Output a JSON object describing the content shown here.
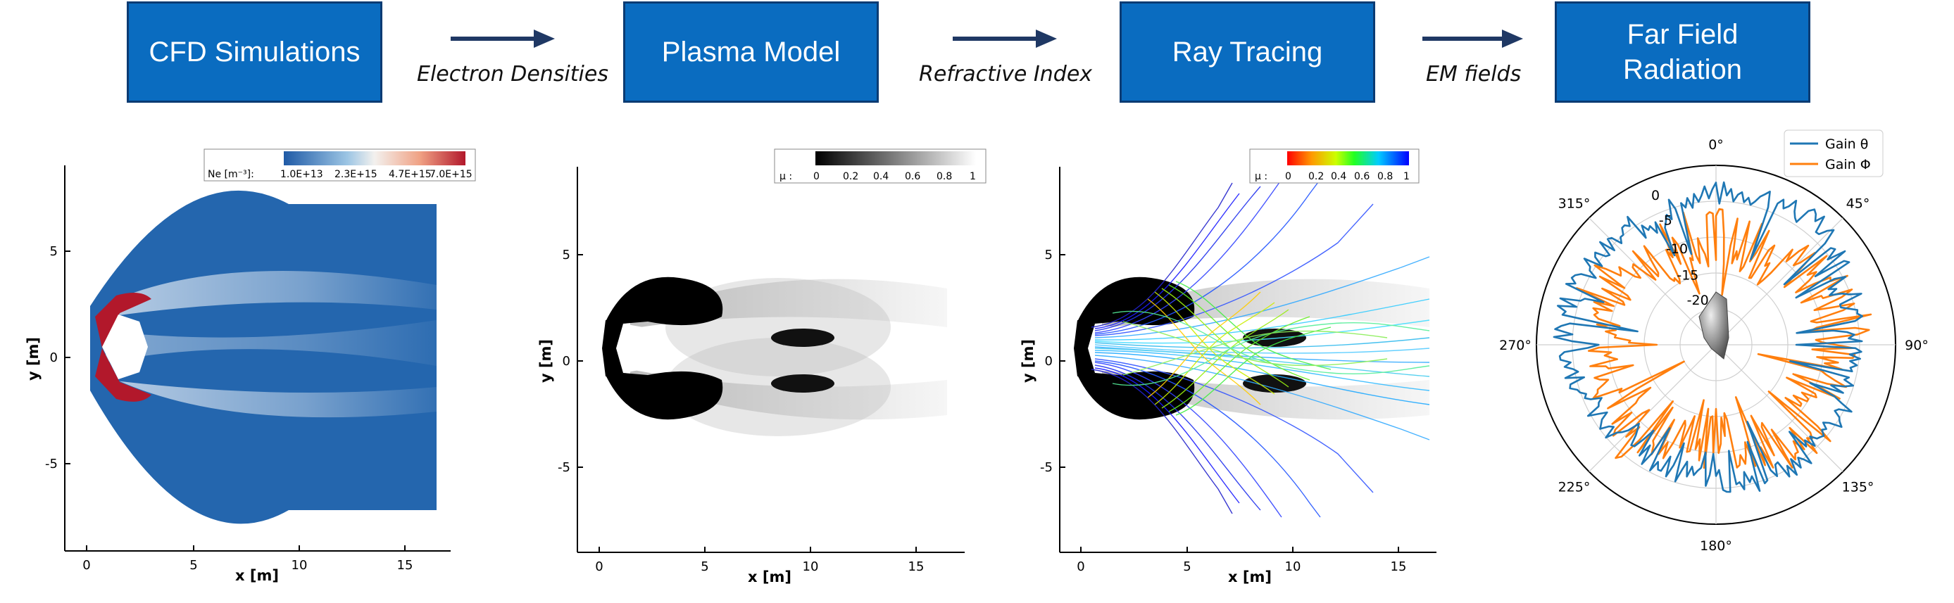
{
  "pipeline": {
    "steps": [
      {
        "label": "CFD Simulations"
      },
      {
        "label": "Plasma Model"
      },
      {
        "label": "Ray Tracing"
      },
      {
        "label": "Far Field\nRadiation"
      }
    ],
    "edges": [
      {
        "label": "Electron Densities"
      },
      {
        "label": "Refractive Index"
      },
      {
        "label": "EM fields"
      }
    ],
    "box_color": "#0a6cc0",
    "border_color": "#0b3b73"
  },
  "plots": {
    "xlabel": "x [m]",
    "ylabel": "y [m]",
    "xticks": [
      "0",
      "5",
      "10",
      "15"
    ],
    "yticks": [
      "5",
      "0",
      "-5"
    ],
    "xlim": [
      -1,
      17
    ],
    "ylim": [
      -9,
      9
    ],
    "cfd_legend": {
      "label": "Ne [m⁻³]:",
      "ticks": [
        "1.0E+13",
        "2.3E+15",
        "4.7E+15",
        "7.0E+15"
      ]
    },
    "plasma_legend": {
      "label": "μ :",
      "ticks": [
        "0",
        "0.2",
        "0.4",
        "0.6",
        "0.8",
        "1"
      ]
    },
    "ray_legend": {
      "label": "μ :",
      "ticks": [
        "0",
        "0.2",
        "0.4",
        "0.6",
        "0.8",
        "1"
      ]
    }
  },
  "polar": {
    "angle_labels": [
      "0°",
      "45°",
      "90°",
      "135°",
      "180°",
      "225°",
      "270°",
      "315°"
    ],
    "radial_labels": [
      "0",
      "-5",
      "-10",
      "-15",
      "-20"
    ],
    "legend": [
      "Gain θ",
      "Gain Φ"
    ],
    "series_colors": [
      "#1f77b4",
      "#ff7f0e"
    ]
  }
}
